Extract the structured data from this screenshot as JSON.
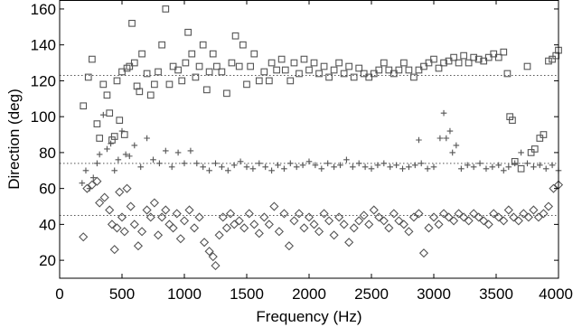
{
  "chart_data": {
    "type": "scatter",
    "title": "",
    "xlabel": "Frequency (Hz)",
    "ylabel": "Direction (deg)",
    "xlim": [
      0,
      4000
    ],
    "ylim": [
      10,
      165
    ],
    "xticks": [
      0,
      500,
      1000,
      1500,
      2000,
      2500,
      3000,
      3500,
      4000
    ],
    "yticks": [
      20,
      40,
      60,
      80,
      100,
      120,
      140,
      160
    ],
    "grid": false,
    "legend": "none",
    "reference_lines": [
      {
        "y": 123,
        "x_range": [
          0,
          4000
        ]
      },
      {
        "y": 74,
        "x_range": [
          0,
          4000
        ]
      },
      {
        "y": 45,
        "x_range": [
          0,
          4000
        ]
      }
    ],
    "series": [
      {
        "marker": "square",
        "color": "#555555",
        "points": [
          [
            190,
            106
          ],
          [
            230,
            122
          ],
          [
            260,
            132
          ],
          [
            300,
            96
          ],
          [
            320,
            88
          ],
          [
            350,
            118
          ],
          [
            380,
            112
          ],
          [
            400,
            102
          ],
          [
            420,
            87
          ],
          [
            440,
            89
          ],
          [
            460,
            120
          ],
          [
            480,
            98
          ],
          [
            500,
            125
          ],
          [
            520,
            90
          ],
          [
            540,
            127
          ],
          [
            560,
            128
          ],
          [
            580,
            152
          ],
          [
            600,
            130
          ],
          [
            620,
            117
          ],
          [
            640,
            114
          ],
          [
            660,
            135
          ],
          [
            700,
            124
          ],
          [
            730,
            112
          ],
          [
            760,
            118
          ],
          [
            790,
            125
          ],
          [
            820,
            140
          ],
          [
            850,
            160
          ],
          [
            880,
            118
          ],
          [
            910,
            128
          ],
          [
            950,
            126
          ],
          [
            980,
            120
          ],
          [
            1010,
            130
          ],
          [
            1030,
            147
          ],
          [
            1060,
            135
          ],
          [
            1090,
            122
          ],
          [
            1120,
            128
          ],
          [
            1150,
            140
          ],
          [
            1180,
            115
          ],
          [
            1200,
            125
          ],
          [
            1230,
            135
          ],
          [
            1260,
            128
          ],
          [
            1300,
            125
          ],
          [
            1340,
            113
          ],
          [
            1380,
            130
          ],
          [
            1410,
            145
          ],
          [
            1440,
            128
          ],
          [
            1470,
            140
          ],
          [
            1500,
            118
          ],
          [
            1530,
            128
          ],
          [
            1560,
            135
          ],
          [
            1600,
            120
          ],
          [
            1640,
            125
          ],
          [
            1680,
            120
          ],
          [
            1700,
            130
          ],
          [
            1740,
            126
          ],
          [
            1780,
            132
          ],
          [
            1810,
            126
          ],
          [
            1850,
            120
          ],
          [
            1880,
            130
          ],
          [
            1920,
            124
          ],
          [
            1960,
            132
          ],
          [
            2000,
            126
          ],
          [
            2040,
            130
          ],
          [
            2080,
            124
          ],
          [
            2120,
            128
          ],
          [
            2160,
            122
          ],
          [
            2200,
            126
          ],
          [
            2240,
            130
          ],
          [
            2280,
            124
          ],
          [
            2320,
            128
          ],
          [
            2360,
            122
          ],
          [
            2400,
            127
          ],
          [
            2440,
            124
          ],
          [
            2480,
            122
          ],
          [
            2520,
            124
          ],
          [
            2560,
            126
          ],
          [
            2600,
            130
          ],
          [
            2640,
            126
          ],
          [
            2680,
            124
          ],
          [
            2720,
            126
          ],
          [
            2760,
            130
          ],
          [
            2800,
            126
          ],
          [
            2840,
            122
          ],
          [
            2880,
            126
          ],
          [
            2920,
            128
          ],
          [
            2960,
            130
          ],
          [
            3000,
            132
          ],
          [
            3040,
            127
          ],
          [
            3080,
            130
          ],
          [
            3120,
            131
          ],
          [
            3160,
            133
          ],
          [
            3200,
            130
          ],
          [
            3240,
            134
          ],
          [
            3280,
            130
          ],
          [
            3320,
            133
          ],
          [
            3360,
            132
          ],
          [
            3400,
            131
          ],
          [
            3440,
            133
          ],
          [
            3480,
            135
          ],
          [
            3520,
            133
          ],
          [
            3560,
            136
          ],
          [
            3590,
            124
          ],
          [
            3610,
            100
          ],
          [
            3630,
            98
          ],
          [
            3650,
            75
          ],
          [
            3700,
            71
          ],
          [
            3750,
            128
          ],
          [
            3780,
            80
          ],
          [
            3810,
            82
          ],
          [
            3850,
            88
          ],
          [
            3880,
            90
          ],
          [
            3920,
            131
          ],
          [
            3950,
            132
          ],
          [
            3980,
            134
          ],
          [
            4000,
            137
          ]
        ]
      },
      {
        "marker": "plus",
        "color": "#555555",
        "points": [
          [
            180,
            63
          ],
          [
            210,
            70
          ],
          [
            240,
            60
          ],
          [
            270,
            66
          ],
          [
            300,
            74
          ],
          [
            320,
            79
          ],
          [
            350,
            101
          ],
          [
            380,
            82
          ],
          [
            410,
            85
          ],
          [
            440,
            70
          ],
          [
            470,
            76
          ],
          [
            500,
            92
          ],
          [
            530,
            79
          ],
          [
            560,
            78
          ],
          [
            600,
            84
          ],
          [
            650,
            72
          ],
          [
            700,
            88
          ],
          [
            750,
            76
          ],
          [
            800,
            74
          ],
          [
            850,
            81
          ],
          [
            900,
            72
          ],
          [
            950,
            80
          ],
          [
            1000,
            74
          ],
          [
            1050,
            81
          ],
          [
            1100,
            74
          ],
          [
            1150,
            72
          ],
          [
            1200,
            70
          ],
          [
            1250,
            74
          ],
          [
            1300,
            72
          ],
          [
            1350,
            70
          ],
          [
            1400,
            73
          ],
          [
            1450,
            75
          ],
          [
            1500,
            72
          ],
          [
            1550,
            71
          ],
          [
            1600,
            74
          ],
          [
            1650,
            72
          ],
          [
            1700,
            70
          ],
          [
            1750,
            73
          ],
          [
            1800,
            71
          ],
          [
            1850,
            74
          ],
          [
            1900,
            72
          ],
          [
            1950,
            73
          ],
          [
            2000,
            75
          ],
          [
            2050,
            73
          ],
          [
            2100,
            71
          ],
          [
            2150,
            74
          ],
          [
            2200,
            72
          ],
          [
            2250,
            73
          ],
          [
            2300,
            76
          ],
          [
            2350,
            72
          ],
          [
            2400,
            74
          ],
          [
            2450,
            72
          ],
          [
            2500,
            71
          ],
          [
            2550,
            73
          ],
          [
            2600,
            74
          ],
          [
            2650,
            72
          ],
          [
            2700,
            73
          ],
          [
            2750,
            71
          ],
          [
            2800,
            72
          ],
          [
            2850,
            73
          ],
          [
            2880,
            87
          ],
          [
            2900,
            74
          ],
          [
            2950,
            71
          ],
          [
            3000,
            72
          ],
          [
            3050,
            88
          ],
          [
            3080,
            102
          ],
          [
            3100,
            88
          ],
          [
            3130,
            92
          ],
          [
            3150,
            80
          ],
          [
            3180,
            84
          ],
          [
            3220,
            71
          ],
          [
            3270,
            73
          ],
          [
            3320,
            72
          ],
          [
            3370,
            74
          ],
          [
            3420,
            71
          ],
          [
            3470,
            72
          ],
          [
            3520,
            73
          ],
          [
            3560,
            70
          ],
          [
            3600,
            72
          ],
          [
            3650,
            74
          ],
          [
            3700,
            80
          ],
          [
            3750,
            74
          ],
          [
            3800,
            72
          ],
          [
            3850,
            73
          ],
          [
            3900,
            71
          ],
          [
            3950,
            73
          ],
          [
            4000,
            70
          ]
        ]
      },
      {
        "marker": "diamond",
        "color": "#555555",
        "points": [
          [
            190,
            33
          ],
          [
            220,
            60
          ],
          [
            260,
            62
          ],
          [
            300,
            64
          ],
          [
            320,
            52
          ],
          [
            360,
            55
          ],
          [
            400,
            48
          ],
          [
            420,
            40
          ],
          [
            440,
            26
          ],
          [
            460,
            38
          ],
          [
            480,
            58
          ],
          [
            500,
            44
          ],
          [
            520,
            36
          ],
          [
            540,
            60
          ],
          [
            570,
            50
          ],
          [
            600,
            40
          ],
          [
            630,
            28
          ],
          [
            660,
            36
          ],
          [
            700,
            48
          ],
          [
            730,
            44
          ],
          [
            760,
            52
          ],
          [
            790,
            34
          ],
          [
            820,
            44
          ],
          [
            850,
            48
          ],
          [
            880,
            40
          ],
          [
            910,
            38
          ],
          [
            940,
            46
          ],
          [
            970,
            32
          ],
          [
            1000,
            42
          ],
          [
            1040,
            48
          ],
          [
            1080,
            38
          ],
          [
            1120,
            44
          ],
          [
            1160,
            30
          ],
          [
            1200,
            25
          ],
          [
            1230,
            22
          ],
          [
            1250,
            17
          ],
          [
            1280,
            34
          ],
          [
            1310,
            44
          ],
          [
            1340,
            38
          ],
          [
            1370,
            46
          ],
          [
            1400,
            40
          ],
          [
            1440,
            42
          ],
          [
            1480,
            38
          ],
          [
            1520,
            46
          ],
          [
            1560,
            40
          ],
          [
            1600,
            35
          ],
          [
            1640,
            44
          ],
          [
            1680,
            40
          ],
          [
            1720,
            50
          ],
          [
            1760,
            36
          ],
          [
            1800,
            46
          ],
          [
            1840,
            28
          ],
          [
            1880,
            42
          ],
          [
            1920,
            46
          ],
          [
            1960,
            38
          ],
          [
            2000,
            44
          ],
          [
            2040,
            40
          ],
          [
            2080,
            36
          ],
          [
            2120,
            46
          ],
          [
            2160,
            42
          ],
          [
            2200,
            34
          ],
          [
            2240,
            44
          ],
          [
            2280,
            40
          ],
          [
            2320,
            30
          ],
          [
            2360,
            38
          ],
          [
            2400,
            42
          ],
          [
            2440,
            45
          ],
          [
            2480,
            40
          ],
          [
            2520,
            48
          ],
          [
            2560,
            44
          ],
          [
            2600,
            42
          ],
          [
            2640,
            38
          ],
          [
            2680,
            46
          ],
          [
            2720,
            42
          ],
          [
            2760,
            40
          ],
          [
            2800,
            36
          ],
          [
            2840,
            44
          ],
          [
            2880,
            46
          ],
          [
            2920,
            24
          ],
          [
            2960,
            38
          ],
          [
            3000,
            44
          ],
          [
            3040,
            40
          ],
          [
            3080,
            46
          ],
          [
            3120,
            44
          ],
          [
            3160,
            42
          ],
          [
            3200,
            46
          ],
          [
            3240,
            44
          ],
          [
            3280,
            42
          ],
          [
            3320,
            46
          ],
          [
            3360,
            44
          ],
          [
            3400,
            42
          ],
          [
            3440,
            40
          ],
          [
            3480,
            46
          ],
          [
            3520,
            44
          ],
          [
            3560,
            42
          ],
          [
            3600,
            48
          ],
          [
            3640,
            44
          ],
          [
            3680,
            42
          ],
          [
            3720,
            46
          ],
          [
            3760,
            44
          ],
          [
            3800,
            48
          ],
          [
            3840,
            44
          ],
          [
            3880,
            46
          ],
          [
            3920,
            50
          ],
          [
            3960,
            60
          ],
          [
            4000,
            62
          ]
        ]
      }
    ]
  }
}
